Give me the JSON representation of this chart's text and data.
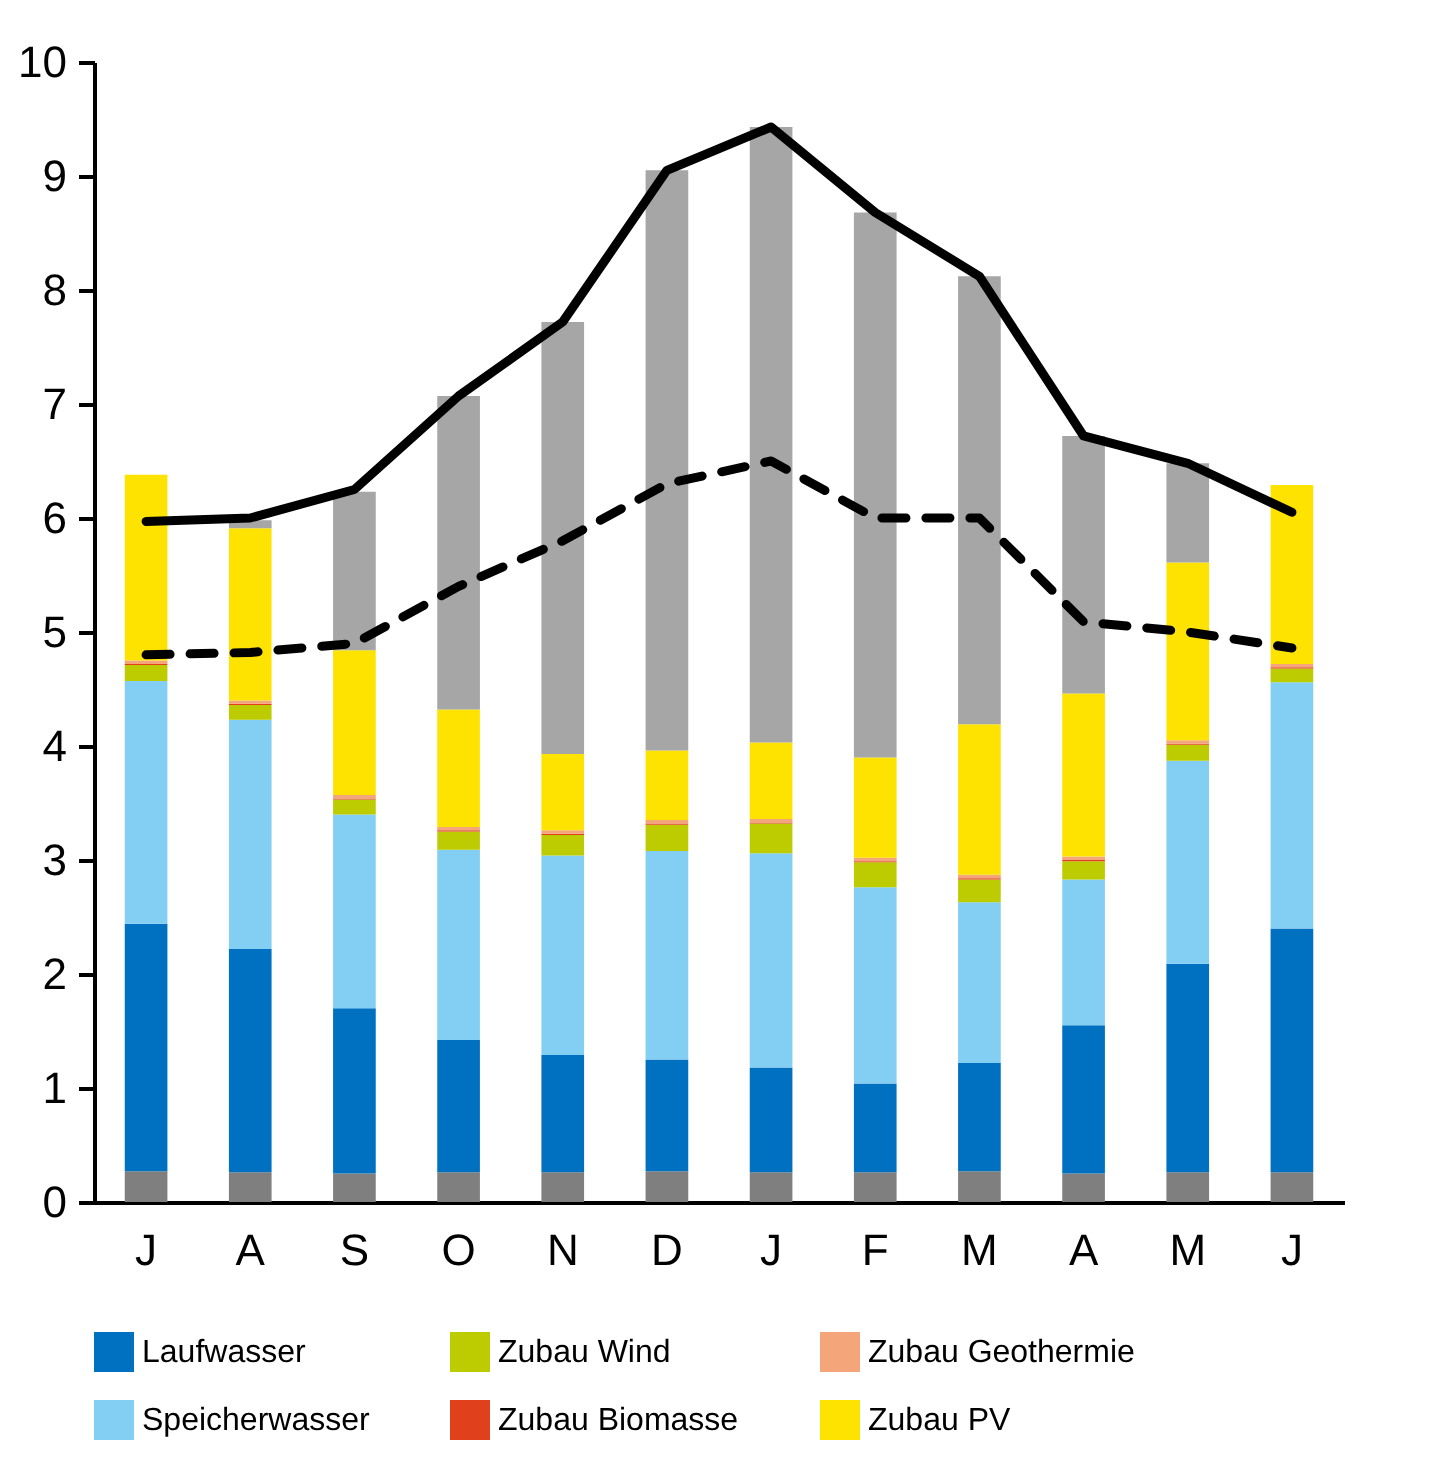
{
  "chart_data": {
    "type": "bar",
    "stacked": true,
    "categories": [
      "J",
      "A",
      "S",
      "O",
      "N",
      "D",
      "J",
      "F",
      "M",
      "A",
      "M",
      "J"
    ],
    "ylim": [
      0,
      10
    ],
    "yticks": [
      0,
      1,
      2,
      3,
      4,
      5,
      6,
      7,
      8,
      9,
      10
    ],
    "grid": false,
    "legend": "bottom",
    "series": [
      {
        "color": "#7f7f7f",
        "values": [
          0.27,
          0.26,
          0.25,
          0.26,
          0.26,
          0.27,
          0.26,
          0.26,
          0.27,
          0.25,
          0.26,
          0.26
        ]
      },
      {
        "name": "Laufwasser",
        "color": "#0070c0",
        "values": [
          2.17,
          1.96,
          1.45,
          1.16,
          1.03,
          0.98,
          0.92,
          0.78,
          0.95,
          1.3,
          1.83,
          2.14
        ]
      },
      {
        "name": "Speicherwasser",
        "color": "#83cff3",
        "values": [
          2.13,
          2.01,
          1.7,
          1.67,
          1.75,
          1.83,
          1.88,
          1.72,
          1.41,
          1.28,
          1.78,
          2.16
        ]
      },
      {
        "name": "Zubau Wind",
        "color": "#bccc00",
        "values": [
          0.14,
          0.13,
          0.13,
          0.16,
          0.18,
          0.23,
          0.26,
          0.22,
          0.2,
          0.16,
          0.14,
          0.12
        ]
      },
      {
        "name": "Zubau Biomasse",
        "color": "#e0401c",
        "values": [
          0.01,
          0.01,
          0.01,
          0.01,
          0.01,
          0.01,
          0.01,
          0.01,
          0.01,
          0.01,
          0.01,
          0.01
        ]
      },
      {
        "name": "Zubau Geothermie",
        "color": "#f4a57a",
        "values": [
          0.03,
          0.03,
          0.03,
          0.03,
          0.03,
          0.03,
          0.03,
          0.03,
          0.03,
          0.03,
          0.03,
          0.03
        ]
      },
      {
        "name": "Zubau PV",
        "color": "#ffe300",
        "values": [
          1.63,
          1.51,
          1.27,
          1.03,
          0.67,
          0.61,
          0.67,
          0.88,
          1.32,
          1.43,
          1.56,
          1.57
        ]
      },
      {
        "color": "#a6a6a6",
        "values": [
          null,
          0.07,
          1.39,
          2.75,
          3.79,
          5.09,
          5.4,
          4.78,
          3.93,
          2.26,
          0.87,
          null
        ]
      },
      {
        "type": "line",
        "color": "#000000",
        "line_style": "solid",
        "values": [
          5.97,
          6.0,
          6.25,
          7.07,
          7.72,
          9.05,
          9.43,
          8.68,
          8.12,
          6.72,
          6.48,
          6.05
        ]
      },
      {
        "type": "line",
        "color": "#000000",
        "line_style": "dashed",
        "values": [
          4.8,
          4.82,
          4.9,
          5.4,
          5.8,
          6.3,
          6.5,
          6.0,
          6.0,
          5.09,
          5.0,
          4.86
        ]
      }
    ]
  }
}
